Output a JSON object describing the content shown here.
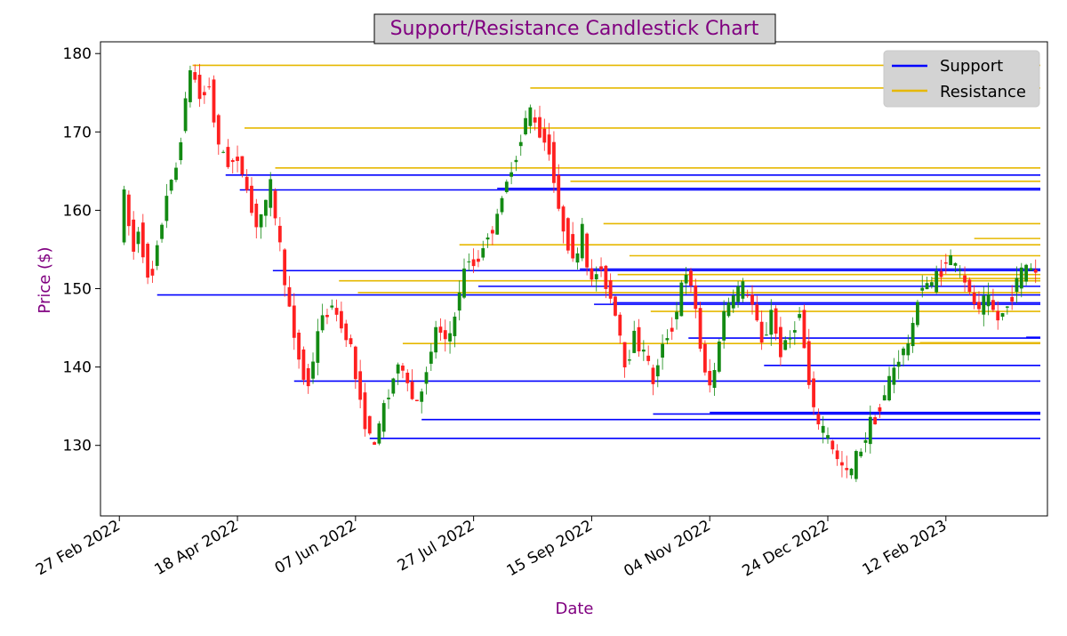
{
  "chart_data": {
    "type": "candlestick",
    "title": "Support/Resistance Candlestick Chart",
    "xlabel": "Date",
    "ylabel": "Price ($)",
    "title_color": "#800080",
    "label_color": "#800080",
    "up_color": "#138a13",
    "down_color": "#ff2020",
    "xlim": [
      "2022-02-19",
      "2023-03-27"
    ],
    "ylim": [
      121,
      181.5
    ],
    "x_ticks": [
      {
        "date": "2022-02-27",
        "label": "27 Feb 2022"
      },
      {
        "date": "2022-04-18",
        "label": "18 Apr 2022"
      },
      {
        "date": "2022-06-07",
        "label": "07 Jun 2022"
      },
      {
        "date": "2022-07-27",
        "label": "27 Jul 2022"
      },
      {
        "date": "2022-09-15",
        "label": "15 Sep 2022"
      },
      {
        "date": "2022-11-04",
        "label": "04 Nov 2022"
      },
      {
        "date": "2022-12-24",
        "label": "24 Dec 2022"
      },
      {
        "date": "2023-02-12",
        "label": "12 Feb 2023"
      }
    ],
    "y_ticks": [
      130,
      140,
      150,
      160,
      170,
      180
    ],
    "grid": false,
    "legend": {
      "position": "top-right",
      "entries": [
        {
          "name": "Support",
          "color": "#0000ff"
        },
        {
          "name": "Resistance",
          "color": "#e6b800"
        }
      ]
    },
    "support_levels": [
      {
        "start": "2022-03-15",
        "end": "2023-03-24",
        "price": 149.2
      },
      {
        "start": "2022-04-13",
        "end": "2023-03-24",
        "price": 164.5
      },
      {
        "start": "2022-04-19",
        "end": "2023-03-24",
        "price": 162.6
      },
      {
        "start": "2022-05-03",
        "end": "2023-03-24",
        "price": 152.3
      },
      {
        "start": "2022-05-12",
        "end": "2023-03-24",
        "price": 138.2
      },
      {
        "start": "2022-06-13",
        "end": "2023-03-24",
        "price": 130.9
      },
      {
        "start": "2022-07-05",
        "end": "2023-03-24",
        "price": 133.3
      },
      {
        "start": "2022-07-29",
        "end": "2023-03-24",
        "price": 150.3
      },
      {
        "start": "2022-08-06",
        "end": "2023-03-24",
        "price": 162.8
      },
      {
        "start": "2022-09-10",
        "end": "2023-03-24",
        "price": 152.5
      },
      {
        "start": "2022-09-16",
        "end": "2023-03-24",
        "price": 148.0
      },
      {
        "start": "2022-09-24",
        "end": "2023-03-24",
        "price": 148.2
      },
      {
        "start": "2022-10-11",
        "end": "2023-03-24",
        "price": 134.0
      },
      {
        "start": "2022-10-26",
        "end": "2023-03-24",
        "price": 143.7
      },
      {
        "start": "2022-11-04",
        "end": "2023-03-24",
        "price": 134.2
      },
      {
        "start": "2022-11-27",
        "end": "2023-03-24",
        "price": 140.2
      },
      {
        "start": "2023-03-18",
        "end": "2023-03-24",
        "price": 143.8
      }
    ],
    "resistance_levels": [
      {
        "start": "2022-03-30",
        "end": "2023-03-24",
        "price": 178.5
      },
      {
        "start": "2022-04-21",
        "end": "2023-03-24",
        "price": 170.5
      },
      {
        "start": "2022-05-04",
        "end": "2023-03-24",
        "price": 165.4
      },
      {
        "start": "2022-05-31",
        "end": "2023-03-24",
        "price": 151.0
      },
      {
        "start": "2022-06-08",
        "end": "2023-03-24",
        "price": 149.5
      },
      {
        "start": "2022-06-27",
        "end": "2023-03-24",
        "price": 143.0
      },
      {
        "start": "2022-07-21",
        "end": "2023-03-24",
        "price": 155.6
      },
      {
        "start": "2022-08-20",
        "end": "2023-03-24",
        "price": 175.6
      },
      {
        "start": "2022-09-06",
        "end": "2023-03-24",
        "price": 163.7
      },
      {
        "start": "2022-09-20",
        "end": "2023-03-24",
        "price": 158.3
      },
      {
        "start": "2022-09-26",
        "end": "2023-03-24",
        "price": 151.8
      },
      {
        "start": "2022-10-01",
        "end": "2023-03-24",
        "price": 154.2
      },
      {
        "start": "2022-10-10",
        "end": "2023-03-24",
        "price": 147.1
      },
      {
        "start": "2023-02-01",
        "end": "2023-03-24",
        "price": 143.1
      },
      {
        "start": "2023-02-06",
        "end": "2023-03-24",
        "price": 151.3
      },
      {
        "start": "2023-02-24",
        "end": "2023-03-24",
        "price": 156.4
      }
    ],
    "price_path": [
      [
        "2022-03-01",
        157.0
      ],
      [
        "2022-03-03",
        161.5
      ],
      [
        "2022-03-07",
        155.0
      ],
      [
        "2022-03-09",
        158.0
      ],
      [
        "2022-03-14",
        150.0
      ],
      [
        "2022-03-16",
        154.0
      ],
      [
        "2022-03-21",
        162.0
      ],
      [
        "2022-03-25",
        165.5
      ],
      [
        "2022-03-29",
        174.0
      ],
      [
        "2022-03-31",
        178.0
      ],
      [
        "2022-04-05",
        174.0
      ],
      [
        "2022-04-08",
        176.5
      ],
      [
        "2022-04-11",
        169.0
      ],
      [
        "2022-04-14",
        167.0
      ],
      [
        "2022-04-18",
        166.0
      ],
      [
        "2022-04-21",
        166.5
      ],
      [
        "2022-04-26",
        160.0
      ],
      [
        "2022-04-29",
        158.0
      ],
      [
        "2022-05-04",
        163.0
      ],
      [
        "2022-05-09",
        153.0
      ],
      [
        "2022-05-13",
        145.0
      ],
      [
        "2022-05-18",
        139.0
      ],
      [
        "2022-05-20",
        138.0
      ],
      [
        "2022-05-25",
        146.0
      ],
      [
        "2022-05-31",
        148.0
      ],
      [
        "2022-06-03",
        145.0
      ],
      [
        "2022-06-06",
        144.0
      ],
      [
        "2022-06-10",
        137.0
      ],
      [
        "2022-06-14",
        132.0
      ],
      [
        "2022-06-17",
        130.0
      ],
      [
        "2022-06-22",
        136.0
      ],
      [
        "2022-06-28",
        141.0
      ],
      [
        "2022-07-04",
        135.0
      ],
      [
        "2022-07-08",
        138.0
      ],
      [
        "2022-07-13",
        145.0
      ],
      [
        "2022-07-18",
        143.0
      ],
      [
        "2022-07-22",
        148.0
      ],
      [
        "2022-07-26",
        154.0
      ],
      [
        "2022-07-29",
        153.0
      ],
      [
        "2022-08-03",
        156.0
      ],
      [
        "2022-08-09",
        160.0
      ],
      [
        "2022-08-12",
        164.0
      ],
      [
        "2022-08-17",
        168.0
      ],
      [
        "2022-08-21",
        173.0
      ],
      [
        "2022-08-26",
        170.0
      ],
      [
        "2022-08-30",
        168.0
      ],
      [
        "2022-09-03",
        160.0
      ],
      [
        "2022-09-07",
        156.0
      ],
      [
        "2022-09-10",
        153.0
      ],
      [
        "2022-09-13",
        158.0
      ],
      [
        "2022-09-16",
        150.0
      ],
      [
        "2022-09-20",
        153.0
      ],
      [
        "2022-09-24",
        150.0
      ],
      [
        "2022-09-28",
        146.0
      ],
      [
        "2022-10-01",
        140.0
      ],
      [
        "2022-10-05",
        144.0
      ],
      [
        "2022-10-09",
        142.0
      ],
      [
        "2022-10-13",
        138.0
      ],
      [
        "2022-10-17",
        143.0
      ],
      [
        "2022-10-22",
        146.0
      ],
      [
        "2022-10-26",
        152.0
      ],
      [
        "2022-10-30",
        150.0
      ],
      [
        "2022-11-03",
        140.0
      ],
      [
        "2022-11-07",
        137.0
      ],
      [
        "2022-11-11",
        146.0
      ],
      [
        "2022-11-15",
        149.0
      ],
      [
        "2022-11-20",
        150.0
      ],
      [
        "2022-11-24",
        148.0
      ],
      [
        "2022-11-28",
        143.0
      ],
      [
        "2022-12-02",
        147.0
      ],
      [
        "2022-12-06",
        142.0
      ],
      [
        "2022-12-10",
        144.0
      ],
      [
        "2022-12-14",
        147.0
      ],
      [
        "2022-12-18",
        138.0
      ],
      [
        "2022-12-21",
        133.0
      ],
      [
        "2022-12-26",
        131.0
      ],
      [
        "2022-12-30",
        128.0
      ],
      [
        "2023-01-04",
        126.0
      ],
      [
        "2023-01-08",
        129.0
      ],
      [
        "2023-01-12",
        132.0
      ],
      [
        "2023-01-17",
        135.0
      ],
      [
        "2023-01-22",
        139.0
      ],
      [
        "2023-01-26",
        142.0
      ],
      [
        "2023-01-30",
        143.0
      ],
      [
        "2023-02-03",
        151.0
      ],
      [
        "2023-02-07",
        150.0
      ],
      [
        "2023-02-11",
        152.0
      ],
      [
        "2023-02-15",
        154.0
      ],
      [
        "2023-02-19",
        153.0
      ],
      [
        "2023-02-23",
        150.0
      ],
      [
        "2023-02-28",
        147.0
      ],
      [
        "2023-03-03",
        149.0
      ],
      [
        "2023-03-08",
        146.0
      ],
      [
        "2023-03-12",
        148.0
      ],
      [
        "2023-03-16",
        151.0
      ],
      [
        "2023-03-21",
        153.0
      ],
      [
        "2023-03-24",
        152.0
      ]
    ],
    "candle_every_days": 2,
    "candle_end": "2023-03-23"
  }
}
